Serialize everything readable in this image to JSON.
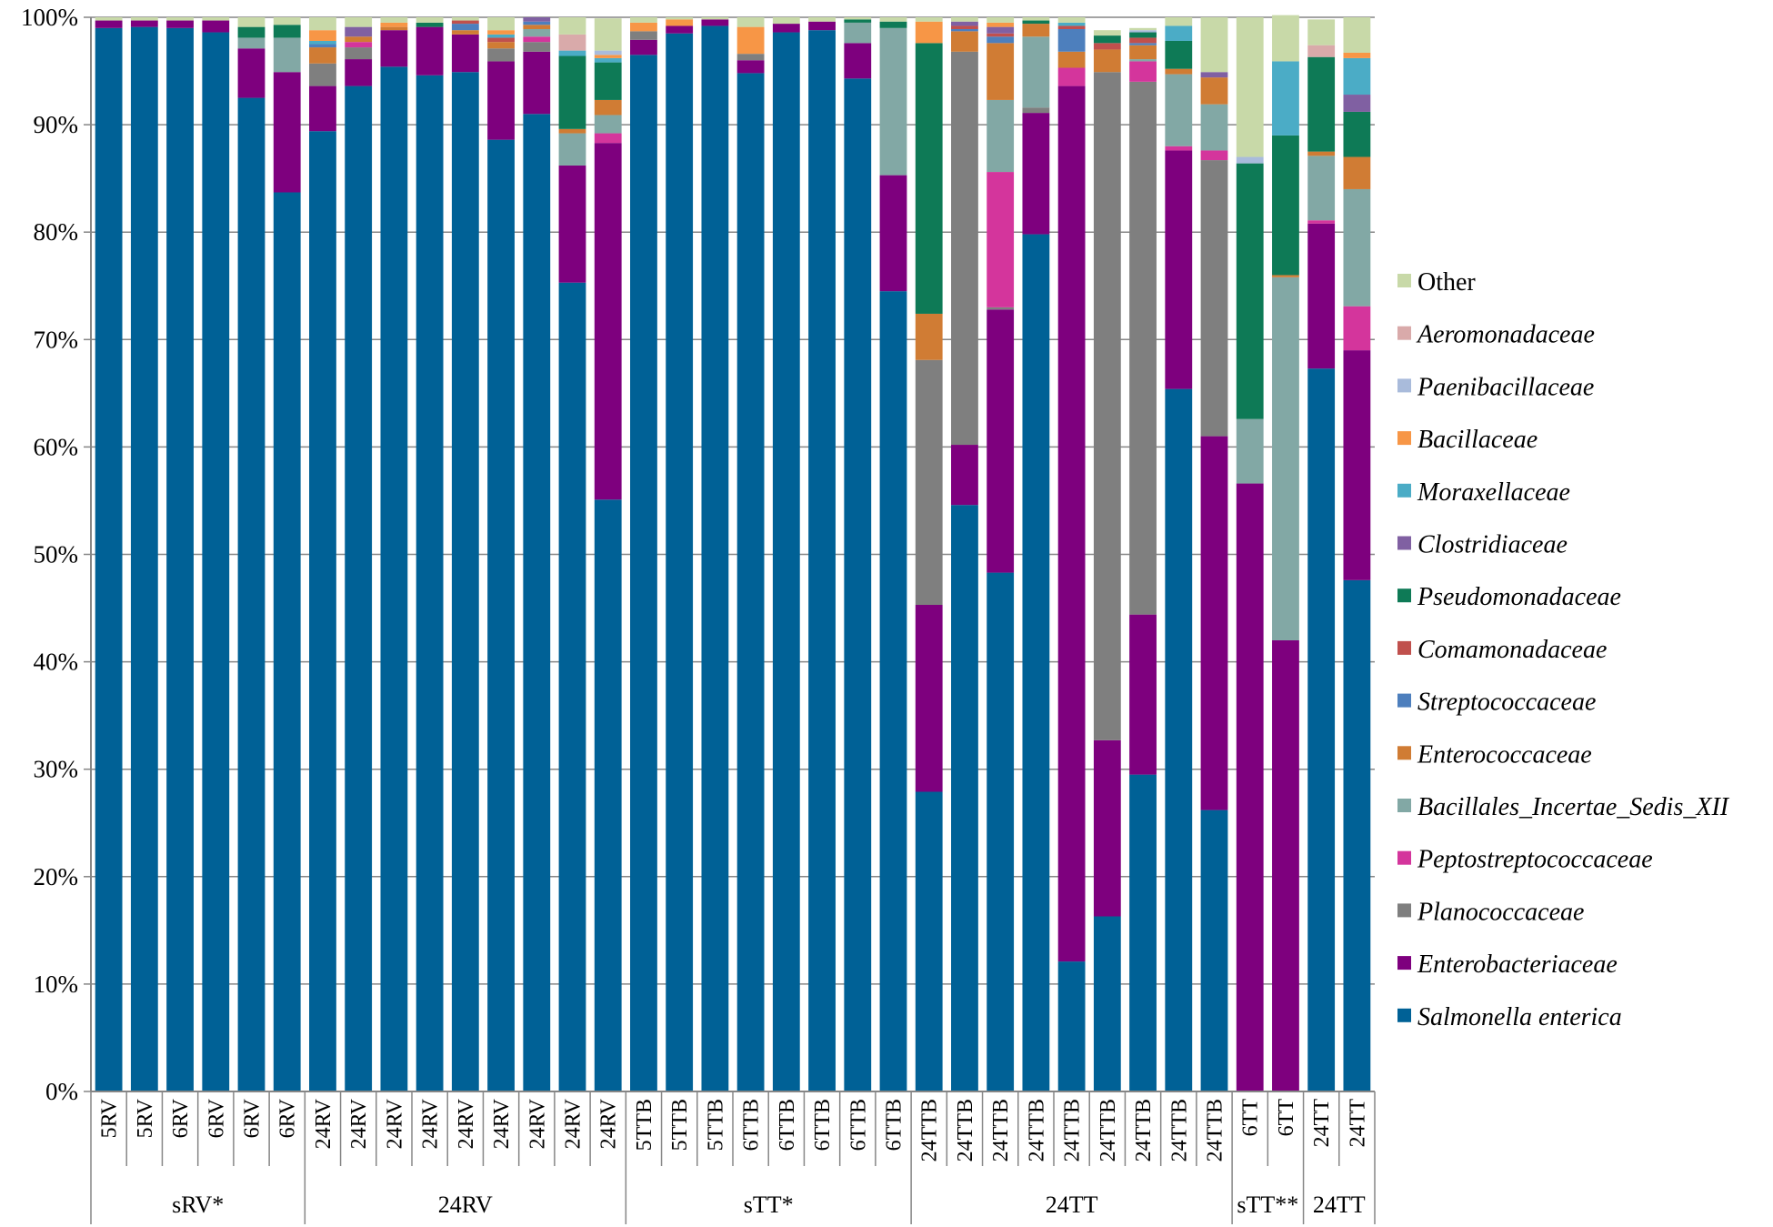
{
  "chart_data": {
    "type": "bar",
    "stacked": true,
    "title": "",
    "xlabel": "",
    "ylabel": "",
    "ylim": [
      0,
      100
    ],
    "ytick_labels": [
      "0%",
      "10%",
      "20%",
      "30%",
      "40%",
      "50%",
      "60%",
      "70%",
      "80%",
      "90%",
      "100%"
    ],
    "grid": true,
    "legend_position": "right",
    "categories": [
      "5RV",
      "5RV",
      "6RV",
      "6RV",
      "6RV",
      "6RV",
      "24RV",
      "24RV",
      "24RV",
      "24RV",
      "24RV",
      "24RV",
      "24RV",
      "24RV",
      "24RV",
      "5TTB",
      "5TTB",
      "5TTB",
      "6TTB",
      "6TTB",
      "6TTB",
      "6TTB",
      "6TTB",
      "24TTB",
      "24TTB",
      "24TTB",
      "24TTB",
      "24TTB",
      "24TTB",
      "24TTB",
      "24TTB",
      "24TTB",
      "6TT",
      "6TT",
      "24TT",
      "24TT"
    ],
    "groups": [
      {
        "label": "sRV*",
        "count": 6
      },
      {
        "label": "24RV",
        "count": 9
      },
      {
        "label": "sTT*",
        "count": 8
      },
      {
        "label": "24TT",
        "count": 9
      },
      {
        "label": "sTT**",
        "count": 2
      },
      {
        "label": "24TT",
        "count": 2
      }
    ],
    "series": [
      {
        "name": "Salmonella enterica",
        "italic": true,
        "color": "#006196",
        "values": [
          99,
          99.1,
          99,
          98.6,
          92.5,
          83.7,
          89.4,
          93.6,
          95.4,
          94.6,
          94.9,
          88.6,
          91,
          75.3,
          55.1,
          96.5,
          98.5,
          99.2,
          94.8,
          98.6,
          98.8,
          94.3,
          74.5,
          27.9,
          54.6,
          48.3,
          79.8,
          12.1,
          16.3,
          29.5,
          65.4,
          26.2,
          0,
          0,
          67.3,
          47.6
        ]
      },
      {
        "name": "Enterobacteriaceae",
        "italic": true,
        "color": "#7e007e",
        "values": [
          0.7,
          0.6,
          0.7,
          1.1,
          4.6,
          11.2,
          4.2,
          2.5,
          3.4,
          4.5,
          3.5,
          7.3,
          5.8,
          10.9,
          33.2,
          1.4,
          0.7,
          0.6,
          1.2,
          0.8,
          0.8,
          3.3,
          10.8,
          17.4,
          5.6,
          24.5,
          11.3,
          81.5,
          16.4,
          14.9,
          22.2,
          34.8,
          56.6,
          42,
          13.5,
          21.4
        ]
      },
      {
        "name": "Planococcaceae",
        "italic": true,
        "color": "#7f7f7f",
        "values": [
          0,
          0,
          0,
          0,
          0,
          0,
          2.1,
          1.1,
          0,
          0,
          0,
          1.2,
          0.9,
          0,
          0,
          0.8,
          0,
          0,
          0.6,
          0,
          0,
          0,
          0,
          22.8,
          36.6,
          0.2,
          0.5,
          0,
          62.2,
          49.6,
          0,
          25.7,
          0,
          0,
          0,
          0
        ]
      },
      {
        "name": "Peptostreptococcaceae",
        "italic": true,
        "color": "#d4359c",
        "values": [
          0,
          0,
          0,
          0,
          0,
          0,
          0,
          0.5,
          0,
          0,
          0,
          0,
          0.5,
          0,
          0.9,
          0,
          0,
          0,
          0,
          0,
          0,
          0,
          0,
          0,
          0,
          12.6,
          0,
          1.7,
          0,
          1.9,
          0.4,
          0.9,
          0,
          0,
          0.3,
          4.1
        ]
      },
      {
        "name": "Bacillales_Incertae_Sedis_XII",
        "italic": true,
        "color": "#82a8a5",
        "values": [
          0,
          0,
          0,
          0,
          1,
          3.2,
          0,
          0,
          0,
          0,
          0,
          0,
          0.7,
          3,
          1.7,
          0,
          0,
          0,
          0,
          0,
          0,
          1.9,
          13.7,
          0,
          0,
          6.7,
          6.6,
          0,
          0,
          0.2,
          6.7,
          4.3,
          6,
          33.8,
          6,
          10.9
        ]
      },
      {
        "name": "Enterococcaceae",
        "italic": true,
        "color": "#d07c34",
        "values": [
          0,
          0,
          0,
          0,
          0,
          0,
          1.5,
          0.5,
          0.3,
          0,
          0.4,
          0.6,
          0.4,
          0.4,
          1.4,
          0,
          0,
          0,
          0,
          0,
          0,
          0,
          0,
          4.3,
          1.9,
          5.3,
          1.2,
          1.5,
          2.1,
          1.3,
          0.5,
          2.5,
          0,
          0.2,
          0.4,
          3
        ]
      },
      {
        "name": "Streptococcaceae",
        "italic": true,
        "color": "#4d7fbd",
        "values": [
          0,
          0,
          0,
          0,
          0,
          0,
          0.3,
          0,
          0,
          0,
          0.6,
          0,
          0.3,
          0,
          0,
          0,
          0,
          0,
          0,
          0,
          0,
          0,
          0,
          0,
          0.2,
          0.6,
          0,
          2.1,
          0,
          0.2,
          0,
          0,
          0,
          0,
          0,
          0
        ]
      },
      {
        "name": "Comamonadaceae",
        "italic": true,
        "color": "#c0504d",
        "values": [
          0,
          0,
          0,
          0,
          0,
          0,
          0,
          0,
          0,
          0,
          0.3,
          0.4,
          0,
          0,
          0,
          0,
          0,
          0,
          0,
          0,
          0,
          0,
          0,
          0,
          0.3,
          0.3,
          0,
          0.3,
          0.6,
          0.5,
          0,
          0,
          0,
          0,
          0,
          0
        ]
      },
      {
        "name": "Pseudomonadaceae",
        "italic": true,
        "color": "#0e7a56",
        "values": [
          0,
          0,
          0,
          0,
          1,
          1.2,
          0,
          0,
          0,
          0.4,
          0,
          0,
          0,
          6.8,
          3.5,
          0,
          0,
          0,
          0,
          0,
          0,
          0.3,
          0.6,
          25.2,
          0,
          0,
          0.3,
          0,
          0.7,
          0.5,
          2.6,
          0,
          23.8,
          13,
          8.8,
          4.2
        ]
      },
      {
        "name": "Clostridiaceae",
        "italic": true,
        "color": "#8060a2",
        "values": [
          0,
          0,
          0,
          0,
          0,
          0,
          0,
          0.9,
          0,
          0,
          0,
          0,
          0.4,
          0,
          0,
          0,
          0,
          0,
          0,
          0,
          0,
          0,
          0,
          0,
          0.4,
          0.6,
          0,
          0,
          0,
          0,
          0,
          0.5,
          0,
          0,
          0,
          1.6
        ]
      },
      {
        "name": "Moraxellaceae",
        "italic": true,
        "color": "#4bacc6",
        "values": [
          0,
          0,
          0,
          0,
          0,
          0,
          0.3,
          0,
          0,
          0,
          0,
          0.3,
          0,
          0.5,
          0.4,
          0,
          0,
          0,
          0,
          0,
          0,
          0,
          0,
          0,
          0,
          0,
          0,
          0.3,
          0,
          0,
          1.4,
          0,
          0,
          6.9,
          0,
          3.4
        ]
      },
      {
        "name": "Bacillaceae",
        "italic": true,
        "color": "#f79646",
        "values": [
          0,
          0,
          0,
          0,
          0,
          0,
          1,
          0,
          0.4,
          0,
          0,
          0.4,
          0,
          0,
          0.3,
          0.8,
          0.6,
          0,
          2.5,
          0,
          0,
          0,
          0,
          2,
          0,
          0.4,
          0,
          0,
          0,
          0,
          0,
          0,
          0,
          0,
          0,
          0.5
        ]
      },
      {
        "name": "Paenibacillaceae",
        "italic": true,
        "color": "#a9bbdb",
        "values": [
          0,
          0,
          0,
          0,
          0,
          0,
          0,
          0,
          0,
          0,
          0,
          0,
          0,
          0,
          0.4,
          0,
          0,
          0,
          0,
          0,
          0,
          0,
          0,
          0,
          0,
          0,
          0,
          0,
          0,
          0.2,
          0,
          0,
          0.6,
          0,
          0,
          0
        ]
      },
      {
        "name": "Aeromonadaceae",
        "italic": true,
        "color": "#d9aaaa",
        "values": [
          0,
          0,
          0,
          0,
          0,
          0,
          0,
          0,
          0,
          0,
          0,
          0,
          0,
          1.5,
          0,
          0,
          0,
          0,
          0,
          0,
          0,
          0,
          0,
          0,
          0,
          0,
          0,
          0,
          0,
          0,
          0,
          0,
          0,
          0,
          1.1,
          0
        ]
      },
      {
        "name": "Other",
        "italic": false,
        "color": "#c8d9a8",
        "values": [
          0.3,
          0.3,
          0.3,
          0.3,
          0.9,
          0.7,
          1.2,
          0.9,
          0.5,
          0.5,
          0.3,
          1.2,
          0,
          1.6,
          3,
          0.5,
          0.2,
          0.2,
          0.9,
          0.6,
          0.4,
          0.2,
          0.4,
          0.4,
          0.4,
          0.5,
          0.3,
          0.5,
          0.5,
          0.2,
          0.8,
          5.1,
          13,
          4.3,
          2.4,
          3.3
        ]
      }
    ]
  }
}
